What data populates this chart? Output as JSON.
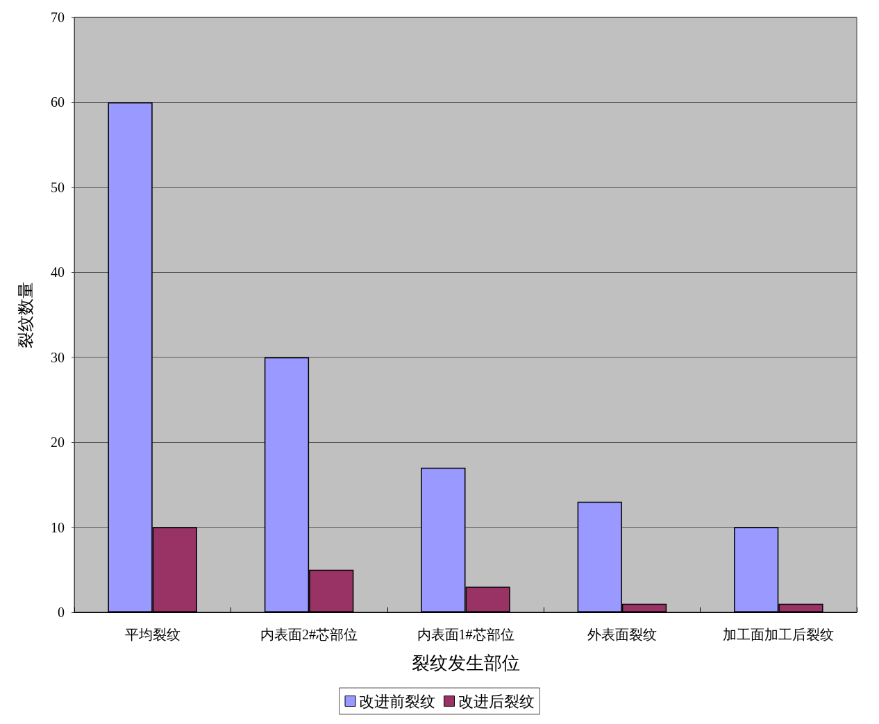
{
  "chart_data": {
    "type": "bar",
    "categories": [
      "平均裂纹",
      "内表面2#芯部位",
      "内表面1#芯部位",
      "外表面裂纹",
      "加工面加工后裂纹"
    ],
    "series": [
      {
        "name": "改进前裂纹",
        "color": "#9999ff",
        "values": [
          60,
          30,
          17,
          13,
          10
        ]
      },
      {
        "name": "改进后裂纹",
        "color": "#993366",
        "values": [
          10,
          5,
          3,
          1,
          1
        ]
      }
    ],
    "xlabel": "裂纹发生部位",
    "ylabel": "裂纹数量",
    "ylim": [
      0,
      70
    ],
    "yticks": [
      0,
      10,
      20,
      30,
      40,
      50,
      60,
      70
    ],
    "grid": "y",
    "legend": "bottom"
  }
}
